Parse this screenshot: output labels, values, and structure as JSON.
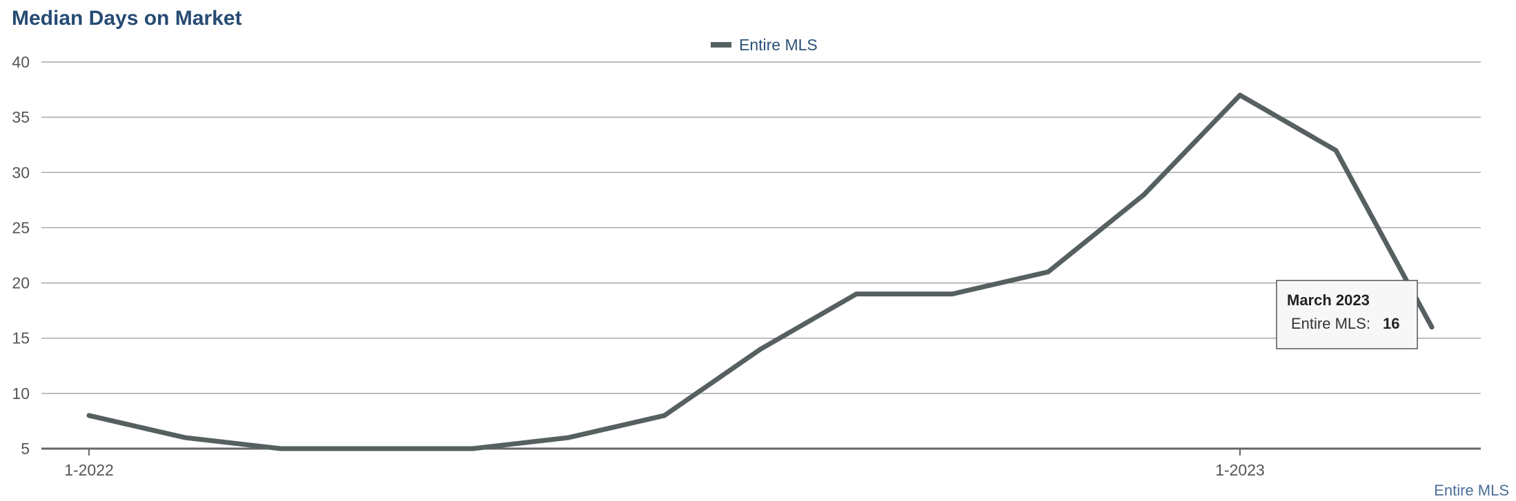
{
  "chart_data": {
    "type": "line",
    "title": "Median Days on Market",
    "x": [
      "1-2022",
      "2-2022",
      "3-2022",
      "4-2022",
      "5-2022",
      "6-2022",
      "7-2022",
      "8-2022",
      "9-2022",
      "10-2022",
      "11-2022",
      "12-2022",
      "1-2023",
      "2-2023",
      "3-2023"
    ],
    "x_tick_labels": [
      "1-2022",
      "1-2023"
    ],
    "series": [
      {
        "name": "Entire MLS",
        "color": "#566060",
        "values": [
          8,
          6,
          5,
          5,
          5,
          6,
          8,
          14,
          19,
          19,
          21,
          28,
          37,
          32,
          16
        ]
      }
    ],
    "ylim": [
      5,
      40
    ],
    "y_ticks": [
      5,
      10,
      15,
      20,
      25,
      30,
      35,
      40
    ],
    "grid": true,
    "legend": "top-center",
    "credit": "Entire MLS",
    "tooltip": {
      "title": "March 2023",
      "series_label": "Entire MLS:",
      "value": "16"
    }
  }
}
